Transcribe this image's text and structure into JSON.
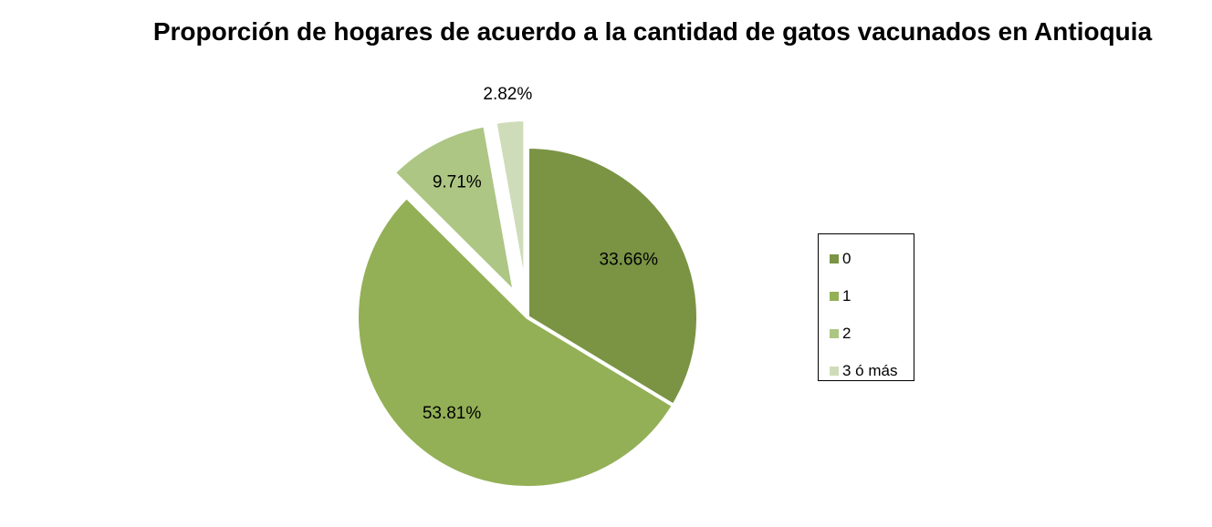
{
  "chart_data": {
    "type": "pie",
    "title": "Proporción de hogares de acuerdo a la cantidad de gatos vacunados en Antioquia",
    "categories": [
      "0",
      "1",
      "2",
      "3 ó más"
    ],
    "values": [
      33.66,
      53.81,
      9.71,
      2.82
    ],
    "data_labels": [
      "33.66%",
      "53.81%",
      "9.71%",
      "2.82%"
    ],
    "colors": [
      "#7a9444",
      "#93b056",
      "#adc684",
      "#cfdcb9"
    ],
    "exploded": [
      false,
      false,
      true,
      true
    ],
    "legend": {
      "placement": "right",
      "entries": [
        "0",
        "1",
        "2",
        "3 ó más"
      ]
    }
  }
}
